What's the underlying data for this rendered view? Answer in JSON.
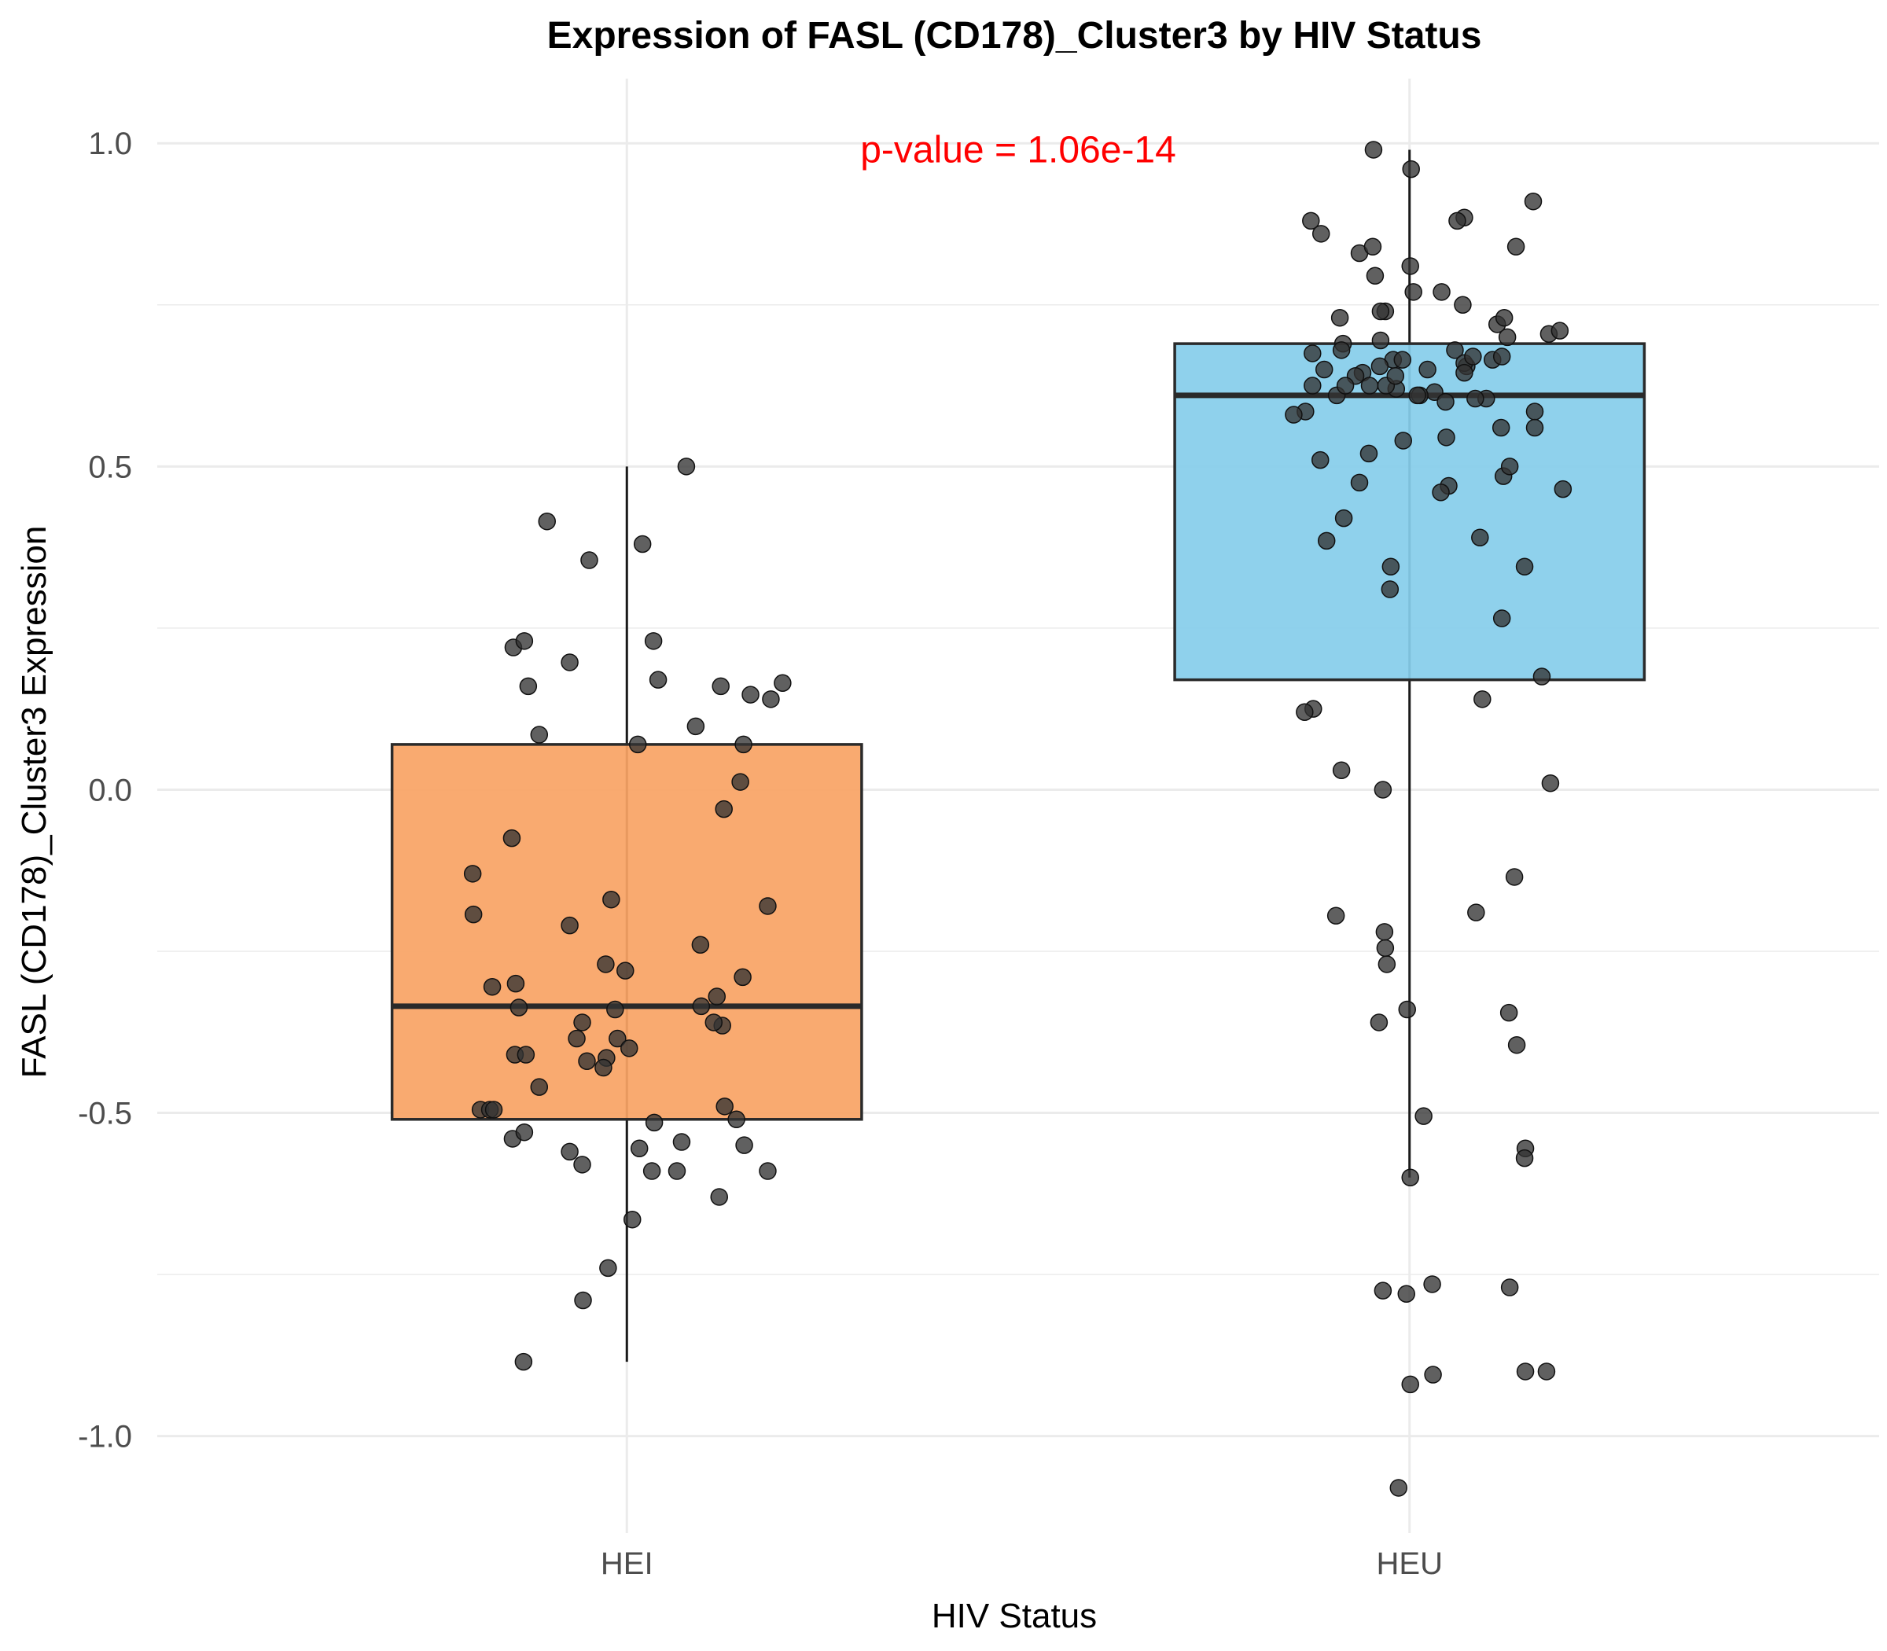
{
  "chart_data": {
    "type": "box",
    "title": "Expression of FASL (CD178)_Cluster3 by HIV Status",
    "xlabel": "HIV Status",
    "ylabel": "FASL (CD178)_Cluster3 Expression",
    "ylim": [
      -1.15,
      1.1
    ],
    "yticks": [
      -1.0,
      -0.5,
      0.0,
      0.5,
      1.0
    ],
    "ytick_labels": [
      "-1.0",
      "-0.5",
      "0.0",
      "0.5",
      "1.0"
    ],
    "yminor": [
      -0.75,
      -0.25,
      0.25,
      0.75
    ],
    "grid": true,
    "legend": "none",
    "categories": [
      "HEI",
      "HEU"
    ],
    "annotation": {
      "text": "p-value = 1.06e-14",
      "color": "#ff0000",
      "x": 1.5,
      "y": 0.99
    },
    "colors": {
      "HEI": "#f9a465",
      "HEU": "#87ceeb",
      "points": "#333333"
    },
    "boxes": [
      {
        "name": "HEI",
        "whisker_low": -0.885,
        "q1": -0.51,
        "median": -0.335,
        "q3": 0.07,
        "whisker_high": 0.5
      },
      {
        "name": "HEU",
        "whisker_low": -0.6,
        "q1": 0.17,
        "median": 0.61,
        "q3": 0.69,
        "whisker_high": 0.99
      }
    ],
    "points": [
      {
        "group": "HEI",
        "x": [
          1.076,
          0.898,
          0.952,
          1.02,
          0.855,
          0.869,
          0.874,
          1.034,
          1.12,
          1.158,
          1.184,
          1.199,
          0.888,
          1.149,
          1.04,
          0.927,
          1.088,
          1.145,
          0.803,
          0.853,
          0.98,
          0.927,
          0.804,
          0.828,
          0.858,
          0.973,
          1.124,
          1.014,
          1.148,
          0.888,
          1.094,
          1.122,
          0.813,
          0.862,
          1.035,
          1.095,
          0.974,
          0.936,
          0.988,
          0.857,
          0.97,
          1.115,
          1.111,
          0.871,
          0.825,
          0.949,
          0.943,
          0.985,
          0.83,
          0.854,
          0.998,
          1.125,
          0.869,
          0.927,
          0.943,
          1.07,
          1.15,
          1.016,
          1.032,
          1.064,
          1.14,
          1.18,
          1.003,
          1.118,
          1.18,
          1.007,
          0.976,
          0.944,
          0.868
        ],
        "y": [
          0.5,
          0.415,
          0.355,
          0.38,
          0.22,
          0.23,
          0.16,
          0.23,
          0.16,
          0.147,
          0.14,
          0.165,
          0.085,
          0.07,
          0.17,
          0.197,
          0.098,
          0.012,
          -0.13,
          -0.075,
          -0.17,
          -0.21,
          -0.193,
          -0.305,
          -0.3,
          -0.27,
          -0.03,
          0.07,
          -0.29,
          -0.46,
          -0.24,
          -0.365,
          -0.495,
          -0.337,
          -0.515,
          -0.335,
          -0.415,
          -0.385,
          -0.385,
          -0.41,
          -0.43,
          -0.32,
          -0.36,
          -0.41,
          -0.495,
          -0.42,
          -0.36,
          -0.34,
          -0.495,
          -0.54,
          -0.28,
          -0.49,
          -0.53,
          -0.56,
          -0.58,
          -0.545,
          -0.55,
          -0.555,
          -0.59,
          -0.59,
          -0.51,
          -0.18,
          -0.4,
          -0.63,
          -0.59,
          -0.665,
          -0.74,
          -0.79,
          -0.885
        ]
      },
      {
        "group": "HEU",
        "x": [
          1.954,
          2.002,
          1.874,
          1.887,
          2.158,
          1.936,
          2.001,
          2.07,
          2.061,
          1.911,
          1.915,
          2.112,
          2.068,
          1.953,
          1.913,
          2.121,
          2.136,
          2.058,
          1.963,
          1.969,
          2.041,
          1.876,
          1.979,
          1.891,
          2.106,
          2.125,
          2.073,
          2.178,
          2.192,
          1.94,
          2.118,
          1.931,
          2.07,
          1.983,
          2.023,
          2.032,
          1.907,
          1.97,
          1.982,
          1.918,
          2.046,
          2.013,
          2.005,
          1.956,
          2.081,
          2.07,
          1.876,
          2.16,
          2.16,
          2.098,
          2.047,
          1.949,
          2.084,
          1.992,
          1.962,
          1.886,
          2.117,
          1.948,
          2.05,
          2.12,
          1.963,
          2.01,
          1.991,
          1.867,
          1.936,
          2.128,
          2.196,
          2.04,
          1.916,
          2.09,
          1.976,
          1.894,
          1.975,
          2.147,
          2.118,
          1.877,
          2.093,
          1.866,
          1.852,
          2.169,
          1.966,
          1.913,
          2.18,
          2.134,
          1.906,
          2.085,
          1.968,
          1.969,
          1.971,
          1.997,
          2.127,
          1.961,
          2.137,
          2.018,
          2.148,
          2.147,
          2.001,
          2.029,
          2.128,
          1.966,
          1.996,
          2.148,
          2.175,
          2.03,
          2.001,
          1.986
        ],
        "y": [
          0.99,
          0.96,
          0.88,
          0.86,
          0.91,
          0.83,
          0.81,
          0.885,
          0.88,
          0.73,
          0.69,
          0.72,
          0.75,
          0.84,
          0.68,
          0.73,
          0.84,
          0.68,
          0.695,
          0.74,
          0.77,
          0.675,
          0.665,
          0.65,
          0.665,
          0.7,
          0.655,
          0.705,
          0.71,
          0.645,
          0.67,
          0.64,
          0.66,
          0.62,
          0.65,
          0.615,
          0.61,
          0.625,
          0.64,
          0.625,
          0.6,
          0.61,
          0.77,
          0.795,
          0.67,
          0.645,
          0.625,
          0.585,
          0.56,
          0.605,
          0.545,
          0.625,
          0.605,
          0.54,
          0.655,
          0.51,
          0.56,
          0.52,
          0.47,
          0.485,
          0.74,
          0.61,
          0.665,
          0.585,
          0.475,
          0.5,
          0.465,
          0.46,
          0.42,
          0.39,
          0.345,
          0.385,
          0.31,
          0.345,
          0.265,
          0.125,
          0.14,
          0.12,
          0.58,
          0.175,
          0.0,
          0.03,
          0.01,
          -0.135,
          -0.195,
          -0.19,
          -0.22,
          -0.245,
          -0.27,
          -0.34,
          -0.345,
          -0.36,
          -0.395,
          -0.505,
          -0.555,
          -0.57,
          -0.6,
          -0.765,
          -0.77,
          -0.775,
          -0.78,
          -0.9,
          -0.9,
          -0.905,
          -0.92,
          -1.08
        ]
      }
    ]
  }
}
